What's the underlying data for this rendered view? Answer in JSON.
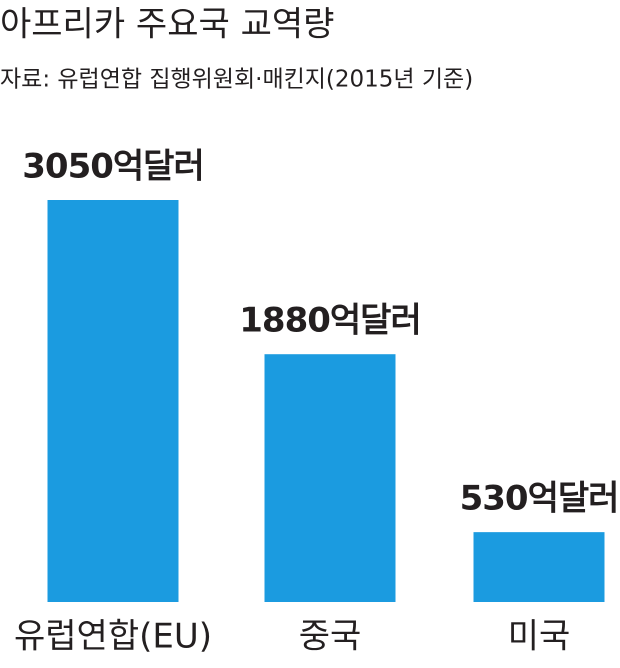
{
  "chart_data": {
    "type": "bar",
    "title": "아프리카 주요국 교역량",
    "subtitle": "자료: 유럽연합 집행위원회·매킨지(2015년 기준)",
    "categories": [
      "유럽연합(EU)",
      "중국",
      "미국"
    ],
    "values": [
      3050,
      1880,
      530
    ],
    "value_labels": [
      "3050억달러",
      "1880억달러",
      "530억달러"
    ],
    "color": "#1b9be0"
  }
}
